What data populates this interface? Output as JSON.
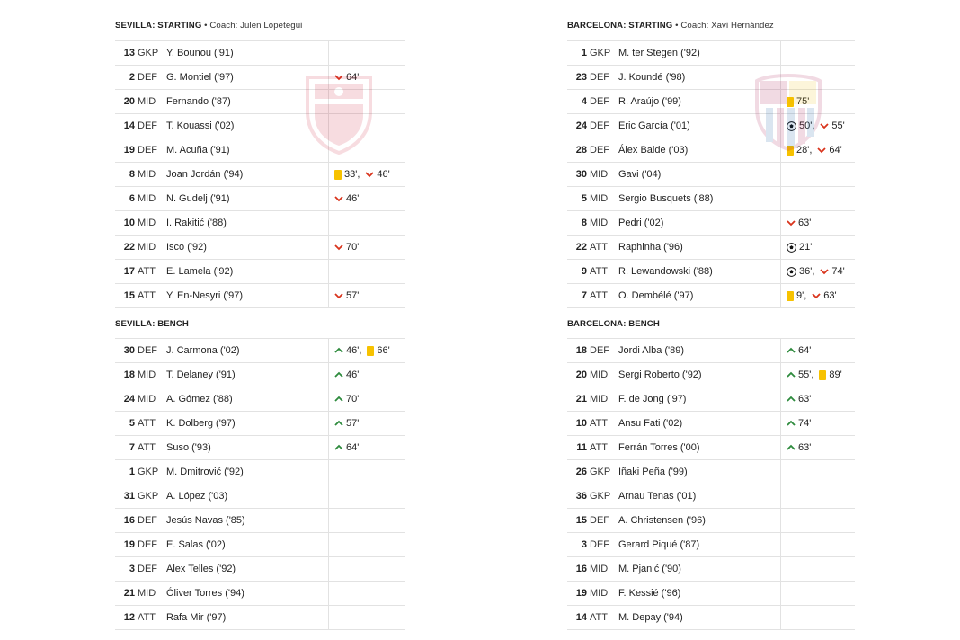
{
  "sevilla": {
    "starting_title": "SEVILLA: STARTING",
    "coach_text": "• Coach: Julen Lopetegui",
    "bench_title": "SEVILLA: BENCH",
    "starting": [
      {
        "num": "13",
        "pos": "GKP",
        "name": "Y. Bounou ('91)",
        "events": []
      },
      {
        "num": "2",
        "pos": "DEF",
        "name": "G. Montiel ('97)",
        "events": [
          {
            "type": "sub-off",
            "minute": "64'"
          }
        ]
      },
      {
        "num": "20",
        "pos": "MID",
        "name": "Fernando ('87)",
        "events": []
      },
      {
        "num": "14",
        "pos": "DEF",
        "name": "T. Kouassi ('02)",
        "events": []
      },
      {
        "num": "19",
        "pos": "DEF",
        "name": "M. Acuña ('91)",
        "events": []
      },
      {
        "num": "8",
        "pos": "MID",
        "name": "Joan Jordán ('94)",
        "events": [
          {
            "type": "yellow",
            "minute": "33',"
          },
          {
            "type": "sub-off",
            "minute": "46'"
          }
        ]
      },
      {
        "num": "6",
        "pos": "MID",
        "name": "N. Gudelj ('91)",
        "events": [
          {
            "type": "sub-off",
            "minute": "46'"
          }
        ]
      },
      {
        "num": "10",
        "pos": "MID",
        "name": "I. Rakitić ('88)",
        "events": []
      },
      {
        "num": "22",
        "pos": "MID",
        "name": "Isco ('92)",
        "events": [
          {
            "type": "sub-off",
            "minute": "70'"
          }
        ]
      },
      {
        "num": "17",
        "pos": "ATT",
        "name": "E. Lamela ('92)",
        "events": []
      },
      {
        "num": "15",
        "pos": "ATT",
        "name": "Y. En-Nesyri ('97)",
        "events": [
          {
            "type": "sub-off",
            "minute": "57'"
          }
        ]
      }
    ],
    "bench": [
      {
        "num": "30",
        "pos": "DEF",
        "name": "J. Carmona ('02)",
        "events": [
          {
            "type": "sub-on",
            "minute": "46',"
          },
          {
            "type": "yellow",
            "minute": "66'"
          }
        ]
      },
      {
        "num": "18",
        "pos": "MID",
        "name": "T. Delaney ('91)",
        "events": [
          {
            "type": "sub-on",
            "minute": "46'"
          }
        ]
      },
      {
        "num": "24",
        "pos": "MID",
        "name": "A. Gómez ('88)",
        "events": [
          {
            "type": "sub-on",
            "minute": "70'"
          }
        ]
      },
      {
        "num": "5",
        "pos": "ATT",
        "name": "K. Dolberg ('97)",
        "events": [
          {
            "type": "sub-on",
            "minute": "57'"
          }
        ]
      },
      {
        "num": "7",
        "pos": "ATT",
        "name": "Suso ('93)",
        "events": [
          {
            "type": "sub-on",
            "minute": "64'"
          }
        ]
      },
      {
        "num": "1",
        "pos": "GKP",
        "name": "M. Dmitrović ('92)",
        "events": []
      },
      {
        "num": "31",
        "pos": "GKP",
        "name": "A. López ('03)",
        "events": []
      },
      {
        "num": "16",
        "pos": "DEF",
        "name": "Jesús Navas ('85)",
        "events": []
      },
      {
        "num": "19",
        "pos": "DEF",
        "name": "E. Salas ('02)",
        "events": []
      },
      {
        "num": "3",
        "pos": "DEF",
        "name": "Alex Telles ('92)",
        "events": []
      },
      {
        "num": "21",
        "pos": "MID",
        "name": "Óliver Torres ('94)",
        "events": []
      },
      {
        "num": "12",
        "pos": "ATT",
        "name": "Rafa Mir ('97)",
        "events": []
      }
    ]
  },
  "barcelona": {
    "starting_title": "BARCELONA: STARTING",
    "coach_text": "• Coach: Xavi Hernández",
    "bench_title": "BARCELONA: BENCH",
    "starting": [
      {
        "num": "1",
        "pos": "GKP",
        "name": "M. ter Stegen ('92)",
        "events": []
      },
      {
        "num": "23",
        "pos": "DEF",
        "name": "J. Koundé ('98)",
        "events": []
      },
      {
        "num": "4",
        "pos": "DEF",
        "name": "R. Araújo ('99)",
        "events": [
          {
            "type": "yellow",
            "minute": "75'"
          }
        ]
      },
      {
        "num": "24",
        "pos": "DEF",
        "name": "Eric García ('01)",
        "events": [
          {
            "type": "goal",
            "minute": "50',"
          },
          {
            "type": "sub-off",
            "minute": "55'"
          }
        ]
      },
      {
        "num": "28",
        "pos": "DEF",
        "name": "Álex Balde ('03)",
        "events": [
          {
            "type": "yellow",
            "minute": "28',"
          },
          {
            "type": "sub-off",
            "minute": "64'"
          }
        ]
      },
      {
        "num": "30",
        "pos": "MID",
        "name": "Gavi ('04)",
        "events": []
      },
      {
        "num": "5",
        "pos": "MID",
        "name": "Sergio Busquets ('88)",
        "events": []
      },
      {
        "num": "8",
        "pos": "MID",
        "name": "Pedri ('02)",
        "events": [
          {
            "type": "sub-off",
            "minute": "63'"
          }
        ]
      },
      {
        "num": "22",
        "pos": "ATT",
        "name": "Raphinha ('96)",
        "events": [
          {
            "type": "goal",
            "minute": "21'"
          }
        ]
      },
      {
        "num": "9",
        "pos": "ATT",
        "name": "R. Lewandowski ('88)",
        "events": [
          {
            "type": "goal",
            "minute": "36',"
          },
          {
            "type": "sub-off",
            "minute": "74'"
          }
        ]
      },
      {
        "num": "7",
        "pos": "ATT",
        "name": "O. Dembélé ('97)",
        "events": [
          {
            "type": "yellow",
            "minute": "9',"
          },
          {
            "type": "sub-off",
            "minute": "63'"
          }
        ]
      }
    ],
    "bench": [
      {
        "num": "18",
        "pos": "DEF",
        "name": "Jordi Alba ('89)",
        "events": [
          {
            "type": "sub-on",
            "minute": "64'"
          }
        ]
      },
      {
        "num": "20",
        "pos": "MID",
        "name": "Sergi Roberto ('92)",
        "events": [
          {
            "type": "sub-on",
            "minute": "55',"
          },
          {
            "type": "yellow",
            "minute": "89'"
          }
        ]
      },
      {
        "num": "21",
        "pos": "MID",
        "name": "F. de Jong ('97)",
        "events": [
          {
            "type": "sub-on",
            "minute": "63'"
          }
        ]
      },
      {
        "num": "10",
        "pos": "ATT",
        "name": "Ansu Fati ('02)",
        "events": [
          {
            "type": "sub-on",
            "minute": "74'"
          }
        ]
      },
      {
        "num": "11",
        "pos": "ATT",
        "name": "Ferrán Torres ('00)",
        "events": [
          {
            "type": "sub-on",
            "minute": "63'"
          }
        ]
      },
      {
        "num": "26",
        "pos": "GKP",
        "name": "Iñaki Peña ('99)",
        "events": []
      },
      {
        "num": "36",
        "pos": "GKP",
        "name": "Arnau Tenas ('01)",
        "events": []
      },
      {
        "num": "15",
        "pos": "DEF",
        "name": "A. Christensen ('96)",
        "events": []
      },
      {
        "num": "3",
        "pos": "DEF",
        "name": "Gerard Piqué ('87)",
        "events": []
      },
      {
        "num": "16",
        "pos": "MID",
        "name": "M. Pjanić ('90)",
        "events": []
      },
      {
        "num": "19",
        "pos": "MID",
        "name": "F. Kessié ('96)",
        "events": []
      },
      {
        "num": "14",
        "pos": "ATT",
        "name": "M. Depay ('94)",
        "events": []
      }
    ]
  },
  "colors": {
    "sub_off": "#d9341c",
    "sub_on": "#2e8b3d",
    "yellow_card": "#f7c200",
    "divider": "#e2e2e2"
  }
}
